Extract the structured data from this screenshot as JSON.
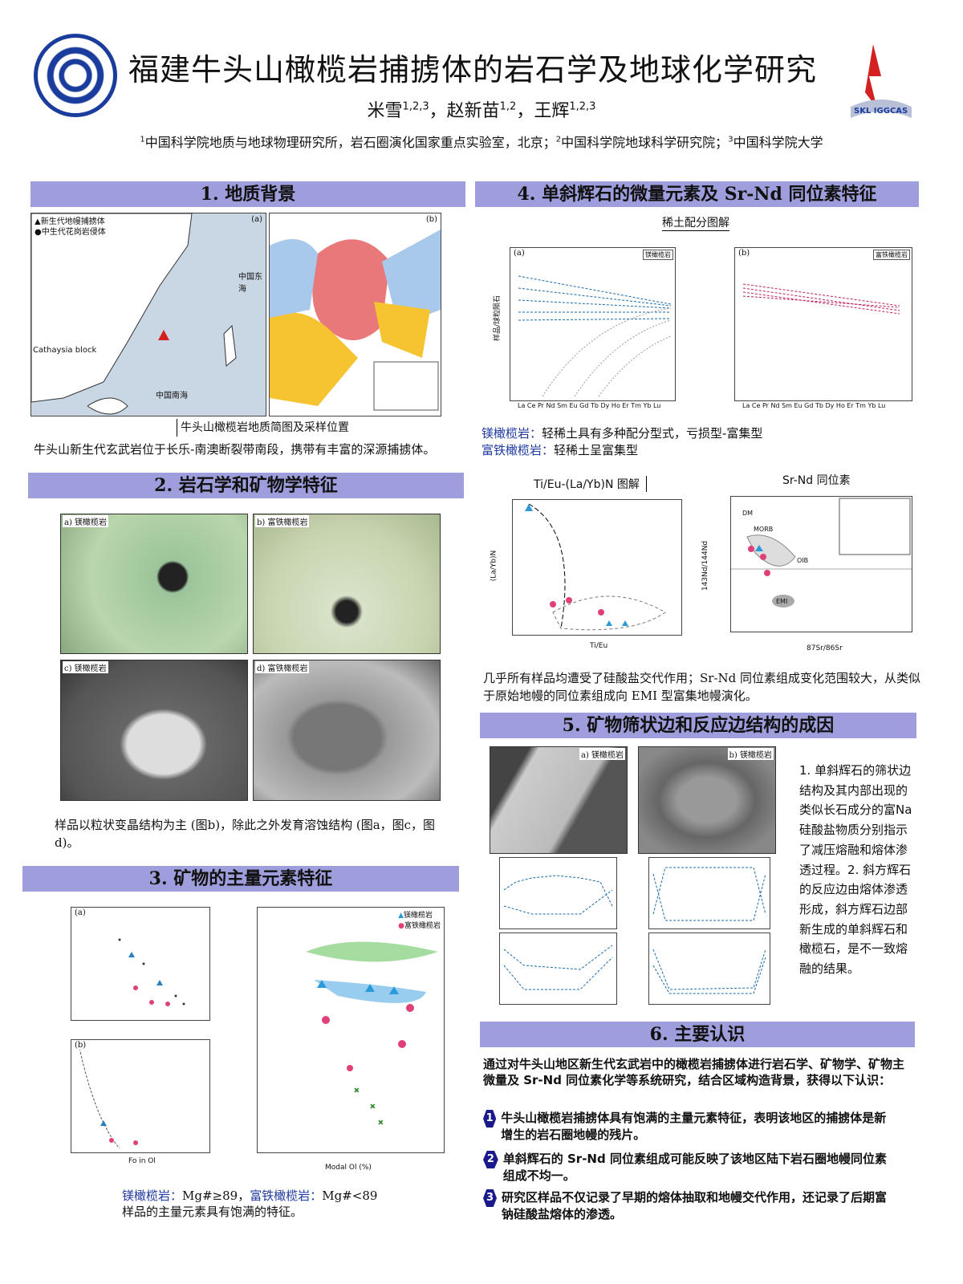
{
  "header": {
    "title": "福建牛头山橄榄岩捕掳体的岩石学及地球化学研究",
    "authors": [
      {
        "name": "米雪",
        "aff": "1,2,3"
      },
      {
        "name": "赵新苗",
        "aff": "1,2"
      },
      {
        "name": "王辉",
        "aff": "1,2,3"
      }
    ],
    "affiliations": [
      {
        "n": "1",
        "text": "中国科学院地质与地球物理研究所，岩石圈演化国家重点实验室，北京；"
      },
      {
        "n": "2",
        "text": "中国科学院地球科学研究院；"
      },
      {
        "n": "3",
        "text": "中国科学院大学"
      }
    ],
    "logo_right_text": "SKL IGGCAS",
    "colors": {
      "section_header": "#9e9edc",
      "highlight_text": "#1f3aa0",
      "logo_blue": "#1a3c9c",
      "logo_red": "#d42020"
    }
  },
  "sec1": {
    "title": "1. 地质背景",
    "caption": "牛头山橄榄岩地质简图及采样位置",
    "text": "牛头山新生代玄武岩位于长乐-南澳断裂带南段，携带有丰富的深源捕掳体。",
    "map_a_label": "(a)",
    "map_b_label": "(b)",
    "map_a_legend": [
      "▲新生代地幔捕掳体",
      "●中生代花岗岩侵体"
    ],
    "map_a_labels": [
      "Cathaysia block",
      "中国南海",
      "中国东海"
    ]
  },
  "sec2": {
    "title": "2. 岩石学和矿物学特征",
    "panels": [
      "a) 镁橄榄岩",
      "b) 富铁橄榄岩",
      "c) 镁橄榄岩",
      "d) 富铁橄榄岩"
    ],
    "text": "样品以粒状变晶结构为主 (图b)，除此之外发育溶蚀结构 (图a，图c，图d)。"
  },
  "sec3": {
    "title": "3. 矿物的主量元素特征",
    "chart_a_label": "(a)",
    "chart_b_label": "(b)",
    "xlabel_a": "Fo in Ol",
    "xlabel_b": "Modal Ol (%)",
    "legend": [
      "镁橄榄岩",
      "富铁橄榄岩"
    ],
    "note_prefix1": "镁橄榄岩：",
    "note_val1": "Mg#≥89，",
    "note_prefix2": "富铁橄榄岩：",
    "note_val2": "Mg#<89",
    "text": "样品的主量元素具有饱满的特征。"
  },
  "sec4": {
    "title": "4. 单斜辉石的微量元素及 Sr-Nd 同位素特征",
    "ree_title": "稀土配分图解",
    "ree_a_label": "(a)",
    "ree_b_label": "(b)",
    "ree_legend_a": "镁橄榄岩",
    "ree_legend_b": "富铁橄榄岩",
    "ree_x": "La Ce Pr Nd Sm Eu Gd Tb Dy Ho Er Tm Yb Lu",
    "ree_ylabel": "样品/球粒陨石",
    "l1_prefix": "镁橄榄岩：",
    "l1_text": "轻稀土具有多种配分型式，亏损型-富集型",
    "l2_prefix": "富铁橄榄岩：",
    "l2_text": "轻稀土呈富集型",
    "tieu_title": "Ti/Eu-(La/Yb)N 图解",
    "tieu_xlabel": "Ti/Eu",
    "tieu_ylabel": "(La/Yb)N",
    "srnd_title": "Sr-Nd 同位素",
    "srnd_xlabel": "87Sr/86Sr",
    "srnd_ylabel": "143Nd/144Nd",
    "srnd_labels": [
      "DM",
      "MORB",
      "OIB",
      "EMI"
    ],
    "text": "几乎所有样品均遭受了硅酸盐交代作用；Sr-Nd 同位素组成变化范围较大，从类似于原始地幔的同位素组成向 EMI 型富集地幔演化。"
  },
  "sec5": {
    "title": "5. 矿物筛状边和反应边结构的成因",
    "panels": [
      "a) 镁橄榄岩",
      "b) 镁橄榄岩"
    ],
    "text": "1. 单斜辉石的筛状边结构及其内部出现的类似长石成分的富Na硅酸盐物质分别指示了减压熔融和熔体渗透过程。2. 斜方辉石的反应边由熔体渗透形成，斜方辉石边部新生成的单斜辉石和橄榄石，是不一致熔融的结果。"
  },
  "sec6": {
    "title": "6. 主要认识",
    "intro": "通过对牛头山地区新生代玄武岩中的橄榄岩捕掳体进行岩石学、矿物学、矿物主微量及 Sr-Nd 同位素化学等系统研究，结合区域构造背景，获得以下认识：",
    "items": [
      {
        "n": "1",
        "text": "牛头山橄榄岩捕掳体具有饱满的主量元素特征，表明该地区的捕掳体是新增生的岩石圈地幔的残片。"
      },
      {
        "n": "2",
        "text": "单斜辉石的 Sr-Nd 同位素组成可能反映了该地区陆下岩石圈地幔同位素组成不均一。"
      },
      {
        "n": "3",
        "text": "研究区样品不仅记录了早期的熔体抽取和地幔交代作用，还记录了后期富钠硅酸盐熔体的渗透。"
      }
    ]
  }
}
